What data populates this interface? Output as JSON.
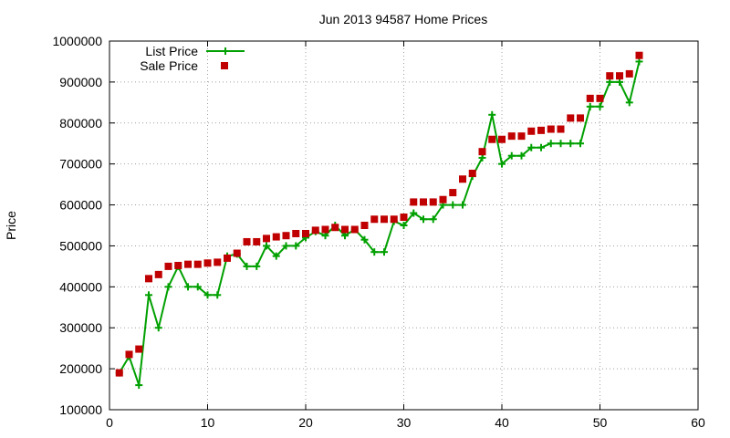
{
  "chart_data": {
    "type": "line",
    "title": "Jun 2013 94587 Home Prices",
    "xlabel": "",
    "ylabel": "Price",
    "xlim": [
      0,
      60
    ],
    "ylim": [
      100000,
      1000000
    ],
    "x_ticks": [
      0,
      10,
      20,
      30,
      40,
      50,
      60
    ],
    "y_ticks": [
      100000,
      200000,
      300000,
      400000,
      500000,
      600000,
      700000,
      800000,
      900000,
      1000000
    ],
    "grid": true,
    "legend_position": "top-left",
    "colors": {
      "list": "#00a000",
      "sale": "#c00000",
      "grid": "#a0a0a0"
    },
    "x": [
      1,
      2,
      3,
      4,
      5,
      6,
      7,
      8,
      9,
      10,
      11,
      12,
      13,
      14,
      15,
      16,
      17,
      18,
      19,
      20,
      21,
      22,
      23,
      24,
      25,
      26,
      27,
      28,
      29,
      30,
      31,
      32,
      33,
      34,
      35,
      36,
      37,
      38,
      39,
      40,
      41,
      42,
      43,
      44,
      45,
      46,
      47,
      48,
      49,
      50,
      51,
      52,
      53,
      54
    ],
    "series": [
      {
        "name": "List Price",
        "style": "line-plus",
        "values": [
          190000,
          230000,
          160000,
          380000,
          300000,
          400000,
          450000,
          400000,
          400000,
          380000,
          380000,
          475000,
          480000,
          450000,
          450000,
          500000,
          475000,
          500000,
          500000,
          520000,
          535000,
          525000,
          550000,
          525000,
          540000,
          515000,
          485000,
          485000,
          560000,
          550000,
          580000,
          565000,
          565000,
          600000,
          600000,
          600000,
          670000,
          715000,
          820000,
          700000,
          720000,
          720000,
          740000,
          740000,
          750000,
          750000,
          750000,
          750000,
          840000,
          840000,
          900000,
          900000,
          850000,
          950000
        ]
      },
      {
        "name": "Sale Price",
        "style": "points-square",
        "values": [
          190000,
          235000,
          248000,
          420000,
          430000,
          450000,
          452000,
          455000,
          455000,
          458000,
          460000,
          470000,
          482000,
          510000,
          510000,
          518000,
          522000,
          525000,
          530000,
          530000,
          538000,
          540000,
          545000,
          540000,
          540000,
          550000,
          565000,
          565000,
          565000,
          570000,
          607000,
          607000,
          607000,
          613000,
          630000,
          663000,
          677000,
          730000,
          760000,
          760000,
          768000,
          768000,
          780000,
          782000,
          785000,
          785000,
          812000,
          812000,
          860000,
          860000,
          915000,
          915000,
          920000,
          965000
        ]
      }
    ]
  }
}
